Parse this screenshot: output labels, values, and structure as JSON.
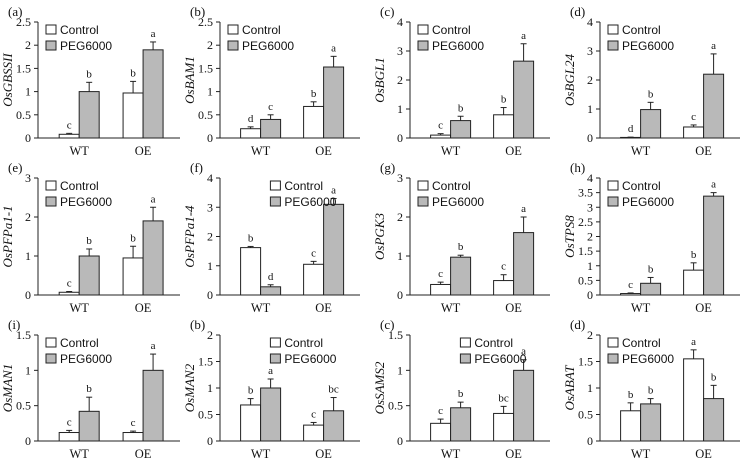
{
  "colors": {
    "control": "#ffffff",
    "peg": "#b9b9b9",
    "stroke": "#222222"
  },
  "legend": {
    "control": "Control",
    "peg": "PEG6000"
  },
  "chart_data": [
    {
      "type": "bar",
      "panel": "(a)",
      "ylabel": "OsGBSSII",
      "categories": [
        "WT",
        "OE"
      ],
      "ylim": [
        0,
        2.5
      ],
      "yticks": [
        "0",
        "0.5",
        "1",
        "1.5",
        "2",
        "2.5"
      ],
      "legend": "top-left",
      "series": [
        {
          "name": "Control",
          "values": [
            0.08,
            0.97
          ],
          "errors": [
            0.02,
            0.25
          ],
          "labels": [
            "c",
            "b"
          ]
        },
        {
          "name": "PEG6000",
          "values": [
            1.0,
            1.9
          ],
          "errors": [
            0.2,
            0.17
          ],
          "labels": [
            "b",
            "a"
          ]
        }
      ]
    },
    {
      "type": "bar",
      "panel": "(b)",
      "ylabel": "OsBAM1",
      "categories": [
        "WT",
        "OE"
      ],
      "ylim": [
        0,
        2.5
      ],
      "yticks": [
        "0",
        "0.5",
        "1",
        "1.5",
        "2",
        "2.5"
      ],
      "legend": "top-left",
      "series": [
        {
          "name": "Control",
          "values": [
            0.2,
            0.68
          ],
          "errors": [
            0.04,
            0.1
          ],
          "labels": [
            "d",
            "b"
          ]
        },
        {
          "name": "PEG6000",
          "values": [
            0.4,
            1.53
          ],
          "errors": [
            0.1,
            0.23
          ],
          "labels": [
            "c",
            "a"
          ]
        }
      ]
    },
    {
      "type": "bar",
      "panel": "(c)",
      "ylabel": "OsBGL1",
      "categories": [
        "WT",
        "OE"
      ],
      "ylim": [
        0,
        4
      ],
      "yticks": [
        "0",
        "1",
        "2",
        "3",
        "4"
      ],
      "legend": "top-left",
      "series": [
        {
          "name": "Control",
          "values": [
            0.1,
            0.8
          ],
          "errors": [
            0.05,
            0.25
          ],
          "labels": [
            "c",
            "b"
          ]
        },
        {
          "name": "PEG6000",
          "values": [
            0.6,
            2.65
          ],
          "errors": [
            0.15,
            0.6
          ],
          "labels": [
            "b",
            "a"
          ]
        }
      ]
    },
    {
      "type": "bar",
      "panel": "(d)",
      "ylabel": "OsBGL24",
      "categories": [
        "WT",
        "OE"
      ],
      "ylim": [
        0,
        4
      ],
      "yticks": [
        "0",
        "1",
        "2",
        "3",
        "4"
      ],
      "legend": "top-left",
      "series": [
        {
          "name": "Control",
          "values": [
            0.02,
            0.38
          ],
          "errors": [
            0.01,
            0.07
          ],
          "labels": [
            "d",
            "c"
          ]
        },
        {
          "name": "PEG6000",
          "values": [
            0.98,
            2.2
          ],
          "errors": [
            0.25,
            0.7
          ],
          "labels": [
            "b",
            "a"
          ]
        }
      ]
    },
    {
      "type": "bar",
      "panel": "(e)",
      "ylabel": "OsPFPa1-1",
      "categories": [
        "WT",
        "OE"
      ],
      "ylim": [
        0,
        3
      ],
      "yticks": [
        "0",
        "1",
        "2",
        "3"
      ],
      "legend": "top-left",
      "series": [
        {
          "name": "Control",
          "values": [
            0.07,
            0.95
          ],
          "errors": [
            0.02,
            0.3
          ],
          "labels": [
            "c",
            "b"
          ]
        },
        {
          "name": "PEG6000",
          "values": [
            1.0,
            1.9
          ],
          "errors": [
            0.18,
            0.35
          ],
          "labels": [
            "b",
            "a"
          ]
        }
      ]
    },
    {
      "type": "bar",
      "panel": "(f)",
      "ylabel": "OsPFPa1-4",
      "categories": [
        "WT",
        "OE"
      ],
      "ylim": [
        0,
        4
      ],
      "yticks": [
        "0",
        "1",
        "2",
        "3",
        "4"
      ],
      "legend": "top-right",
      "series": [
        {
          "name": "Control",
          "values": [
            1.62,
            1.05
          ],
          "errors": [
            0.04,
            0.1
          ],
          "labels": [
            "b",
            "c"
          ]
        },
        {
          "name": "PEG6000",
          "values": [
            0.28,
            3.1
          ],
          "errors": [
            0.07,
            0.2
          ],
          "labels": [
            "d",
            "a"
          ]
        }
      ]
    },
    {
      "type": "bar",
      "panel": "(g)",
      "ylabel": "OsPGK3",
      "categories": [
        "WT",
        "OE"
      ],
      "ylim": [
        0,
        3
      ],
      "yticks": [
        "0",
        "1",
        "2",
        "3"
      ],
      "legend": "top-left",
      "series": [
        {
          "name": "Control",
          "values": [
            0.27,
            0.37
          ],
          "errors": [
            0.06,
            0.15
          ],
          "labels": [
            "c",
            "c"
          ]
        },
        {
          "name": "PEG6000",
          "values": [
            0.97,
            1.6
          ],
          "errors": [
            0.05,
            0.4
          ],
          "labels": [
            "b",
            "a"
          ]
        }
      ]
    },
    {
      "type": "bar",
      "panel": "(h)",
      "ylabel": "OsTPS8",
      "categories": [
        "WT",
        "OE"
      ],
      "ylim": [
        0,
        4
      ],
      "yticks": [
        "0",
        "0.5",
        "1",
        "1.5",
        "2",
        "2.5",
        "3",
        "3.5",
        "4"
      ],
      "legend": "top-left",
      "series": [
        {
          "name": "Control",
          "values": [
            0.05,
            0.85
          ],
          "errors": [
            0.02,
            0.25
          ],
          "labels": [
            "c",
            "b"
          ]
        },
        {
          "name": "PEG6000",
          "values": [
            0.4,
            3.38
          ],
          "errors": [
            0.2,
            0.12
          ],
          "labels": [
            "b",
            "a"
          ]
        }
      ]
    },
    {
      "type": "bar",
      "panel": "(i)",
      "ylabel": "OsMAN1",
      "categories": [
        "WT",
        "OE"
      ],
      "ylim": [
        0,
        1.5
      ],
      "yticks": [
        "0",
        "0.5",
        "1",
        "1.5"
      ],
      "legend": "top-left",
      "series": [
        {
          "name": "Control",
          "values": [
            0.12,
            0.12
          ],
          "errors": [
            0.03,
            0.02
          ],
          "labels": [
            "c",
            "c"
          ]
        },
        {
          "name": "PEG6000",
          "values": [
            0.42,
            1.0
          ],
          "errors": [
            0.2,
            0.23
          ],
          "labels": [
            "b",
            "a"
          ]
        }
      ]
    },
    {
      "type": "bar",
      "panel": "(b)",
      "ylabel": "OsMAN2",
      "categories": [
        "WT",
        "OE"
      ],
      "ylim": [
        0,
        2
      ],
      "yticks": [
        "0",
        "0.5",
        "1",
        "1.5",
        "2"
      ],
      "legend": "top-right",
      "series": [
        {
          "name": "Control",
          "values": [
            0.68,
            0.3
          ],
          "errors": [
            0.12,
            0.05
          ],
          "labels": [
            "b",
            "c"
          ]
        },
        {
          "name": "PEG6000",
          "values": [
            1.0,
            0.57
          ],
          "errors": [
            0.17,
            0.25
          ],
          "labels": [
            "a",
            "bc"
          ]
        }
      ]
    },
    {
      "type": "bar",
      "panel": "(c)",
      "ylabel": "OsSAMS2",
      "categories": [
        "WT",
        "OE"
      ],
      "ylim": [
        0,
        1.5
      ],
      "yticks": [
        "0",
        "0.5",
        "1",
        "1.5"
      ],
      "legend": "top-right",
      "series": [
        {
          "name": "Control",
          "values": [
            0.25,
            0.39
          ],
          "errors": [
            0.06,
            0.1
          ],
          "labels": [
            "c",
            "bc"
          ]
        },
        {
          "name": "PEG6000",
          "values": [
            0.47,
            1.0
          ],
          "errors": [
            0.08,
            0.15
          ],
          "labels": [
            "b",
            "a"
          ]
        }
      ]
    },
    {
      "type": "bar",
      "panel": "(d)",
      "ylabel": "OsABAT",
      "categories": [
        "WT",
        "OE"
      ],
      "ylim": [
        0,
        2
      ],
      "yticks": [
        "0",
        "0.5",
        "1",
        "1.5",
        "2"
      ],
      "legend": "top-left",
      "series": [
        {
          "name": "Control",
          "values": [
            0.57,
            1.55
          ],
          "errors": [
            0.15,
            0.17
          ],
          "labels": [
            "b",
            "a"
          ]
        },
        {
          "name": "PEG6000",
          "values": [
            0.7,
            0.8
          ],
          "errors": [
            0.1,
            0.25
          ],
          "labels": [
            "b",
            "b"
          ]
        }
      ]
    }
  ]
}
